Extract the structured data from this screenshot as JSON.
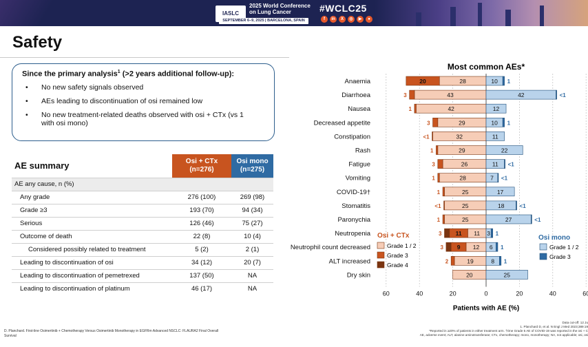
{
  "banner": {
    "logo": "IASLC",
    "conference": "2025 World Conference on Lung Cancer",
    "dates": "SEPTEMBER 6–9, 2025 | BARCELONA, SPAIN",
    "hashtag": "#WCLC25",
    "social_icons": [
      "facebook-icon",
      "linkedin-icon",
      "x-icon",
      "instagram-icon",
      "youtube-icon",
      "wechat-icon"
    ]
  },
  "page": {
    "title": "Safety"
  },
  "summary": {
    "heading_main": "Since the primary analysis",
    "heading_sup": "1",
    "heading_rest": " (>2 years additional follow-up):",
    "bullets": [
      "No new safety signals observed",
      "AEs leading to discontinuation of osi remained low",
      "No new treatment-related deaths observed with osi + CTx (vs 1 with osi mono)"
    ]
  },
  "ae_table": {
    "title": "AE summary",
    "col_osi": "Osi + CTx",
    "col_osi_n": "(n=276)",
    "col_mono": "Osi mono",
    "col_mono_n": "(n=275)",
    "section": "AE any cause, n (%)",
    "rows": [
      {
        "label": "Any grade",
        "osi": "276 (100)",
        "mono": "269 (98)",
        "indent": 1
      },
      {
        "label": "Grade ≥3",
        "osi": "193 (70)",
        "mono": "94 (34)",
        "indent": 1
      },
      {
        "label": "Serious",
        "osi": "126 (46)",
        "mono": "75 (27)",
        "indent": 1
      },
      {
        "label": "Outcome of death",
        "osi": "22 (8)",
        "mono": "10 (4)",
        "indent": 1
      },
      {
        "label": "Considered possibly related to treatment",
        "osi": "5 (2)",
        "mono": "2 (1)",
        "indent": 2
      },
      {
        "label": "Leading to discontinuation of osi",
        "osi": "34 (12)",
        "mono": "20 (7)",
        "indent": 1
      },
      {
        "label": "Leading to discontinuation of pemetrexed",
        "osi": "137 (50)",
        "mono": "NA",
        "indent": 1
      },
      {
        "label": "Leading to discontinuation of platinum",
        "osi": "46 (17)",
        "mono": "NA",
        "indent": 1
      }
    ]
  },
  "colors": {
    "osi_g12": "#f6cdb7",
    "osi_g3": "#c8541f",
    "osi_g4": "#7a3410",
    "mono_g12": "#b9d3eb",
    "mono_g3": "#2f6ba3",
    "navy": "#1d2352"
  },
  "chart_data": {
    "type": "bar",
    "orientation": "horizontal-butterfly",
    "title": "Most common AEs*",
    "xlabel": "Patients with AE (%)",
    "xlim": [
      -60,
      60
    ],
    "xticks": [
      60,
      40,
      20,
      0,
      20,
      40,
      60
    ],
    "legend_left": {
      "title": "Osi + CTx",
      "items": [
        "Grade 1 / 2",
        "Grade 3",
        "Grade 4"
      ]
    },
    "legend_right": {
      "title": "Osi mono",
      "items": [
        "Grade 1 / 2",
        "Grade 3"
      ]
    },
    "categories": [
      {
        "name": "Anaemia",
        "osi": [
          28,
          20,
          0
        ],
        "osi_labels": [
          "28",
          "20",
          ""
        ],
        "osi_ext": "",
        "mono": [
          10,
          1
        ],
        "mono_labels": [
          "10",
          ""
        ],
        "mono_ext": "1"
      },
      {
        "name": "Diarrhoea",
        "osi": [
          43,
          3,
          0
        ],
        "osi_labels": [
          "43",
          "",
          ""
        ],
        "osi_ext": "3",
        "mono": [
          42,
          0.4
        ],
        "mono_labels": [
          "42",
          ""
        ],
        "mono_ext": "<1"
      },
      {
        "name": "Nausea",
        "osi": [
          42,
          1,
          0
        ],
        "osi_labels": [
          "42",
          "",
          ""
        ],
        "osi_ext": "1",
        "mono": [
          12,
          0
        ],
        "mono_labels": [
          "12",
          ""
        ],
        "mono_ext": ""
      },
      {
        "name": "Decreased appetite",
        "osi": [
          29,
          3,
          0
        ],
        "osi_labels": [
          "29",
          "",
          ""
        ],
        "osi_ext": "3",
        "mono": [
          10,
          1
        ],
        "mono_labels": [
          "10",
          ""
        ],
        "mono_ext": "1"
      },
      {
        "name": "Constipation",
        "osi": [
          32,
          0.4,
          0
        ],
        "osi_labels": [
          "32",
          "",
          ""
        ],
        "osi_ext": "<1",
        "mono": [
          11,
          0
        ],
        "mono_labels": [
          "11",
          ""
        ],
        "mono_ext": ""
      },
      {
        "name": "Rash",
        "osi": [
          29,
          1,
          0
        ],
        "osi_labels": [
          "29",
          "",
          ""
        ],
        "osi_ext": "1",
        "mono": [
          22,
          0
        ],
        "mono_labels": [
          "22",
          ""
        ],
        "mono_ext": ""
      },
      {
        "name": "Fatigue",
        "osi": [
          26,
          3,
          0
        ],
        "osi_labels": [
          "26",
          "",
          ""
        ],
        "osi_ext": "3",
        "mono": [
          11,
          0.4
        ],
        "mono_labels": [
          "11",
          ""
        ],
        "mono_ext": "<1"
      },
      {
        "name": "Vomiting",
        "osi": [
          28,
          1,
          0
        ],
        "osi_labels": [
          "28",
          "",
          ""
        ],
        "osi_ext": "1",
        "mono": [
          7,
          0.4
        ],
        "mono_labels": [
          "7",
          ""
        ],
        "mono_ext": "<1"
      },
      {
        "name": "COVID-19†",
        "osi": [
          25,
          1,
          0
        ],
        "osi_labels": [
          "25",
          "",
          ""
        ],
        "osi_ext": "1",
        "mono": [
          17,
          0
        ],
        "mono_labels": [
          "17",
          ""
        ],
        "mono_ext": ""
      },
      {
        "name": "Stomatitis",
        "osi": [
          25,
          0.4,
          0
        ],
        "osi_labels": [
          "25",
          "",
          ""
        ],
        "osi_ext": "<1",
        "mono": [
          18,
          0.4
        ],
        "mono_labels": [
          "18",
          ""
        ],
        "mono_ext": "<1"
      },
      {
        "name": "Paronychia",
        "osi": [
          25,
          1,
          0
        ],
        "osi_labels": [
          "25",
          "",
          ""
        ],
        "osi_ext": "1",
        "mono": [
          27,
          0.4
        ],
        "mono_labels": [
          "27",
          ""
        ],
        "mono_ext": "<1"
      },
      {
        "name": "Neutropenia",
        "osi": [
          11,
          11,
          3
        ],
        "osi_labels": [
          "11",
          "11",
          ""
        ],
        "osi_ext": "3",
        "mono": [
          3,
          1
        ],
        "mono_labels": [
          "3",
          ""
        ],
        "mono_ext": "1"
      },
      {
        "name": "Neutrophil count decreased",
        "osi": [
          12,
          9,
          3
        ],
        "osi_labels": [
          "12",
          "9",
          ""
        ],
        "osi_ext": "3",
        "mono": [
          6,
          1
        ],
        "mono_labels": [
          "6",
          ""
        ],
        "mono_ext": "1"
      },
      {
        "name": "ALT increased",
        "osi": [
          19,
          2,
          0
        ],
        "osi_labels": [
          "19",
          "",
          ""
        ],
        "osi_ext": "2",
        "mono": [
          8,
          1
        ],
        "mono_labels": [
          "8",
          ""
        ],
        "mono_ext": "1"
      },
      {
        "name": "Dry skin",
        "osi": [
          20,
          0,
          0
        ],
        "osi_labels": [
          "20",
          "",
          ""
        ],
        "osi_ext": "",
        "mono": [
          25,
          0
        ],
        "mono_labels": [
          "25",
          ""
        ],
        "mono_ext": ""
      }
    ]
  },
  "footnotes": {
    "left": "D. Planchard. First-line Osimertinib + Chemotherapy Versus Osimertinib Monotherapy in EGFRm Advanced NSCLC: FLAURA2 Final Overall Survival",
    "cutoff": "Data cut-off: 12 Ju",
    "ref": "1. Planchard D, et al. N Engl J Med 2023;389:19",
    "star": "*Reported in ≥20% of patients in either treatment arm. †One Grade 5 AE of COVID-19 was reported in the osi + C",
    "abbr": "AE, adverse event; ALT, alanine aminotransferase; CTx, chemotherapy; mono, monotherapy; NA, not applicable; osi, osi"
  }
}
